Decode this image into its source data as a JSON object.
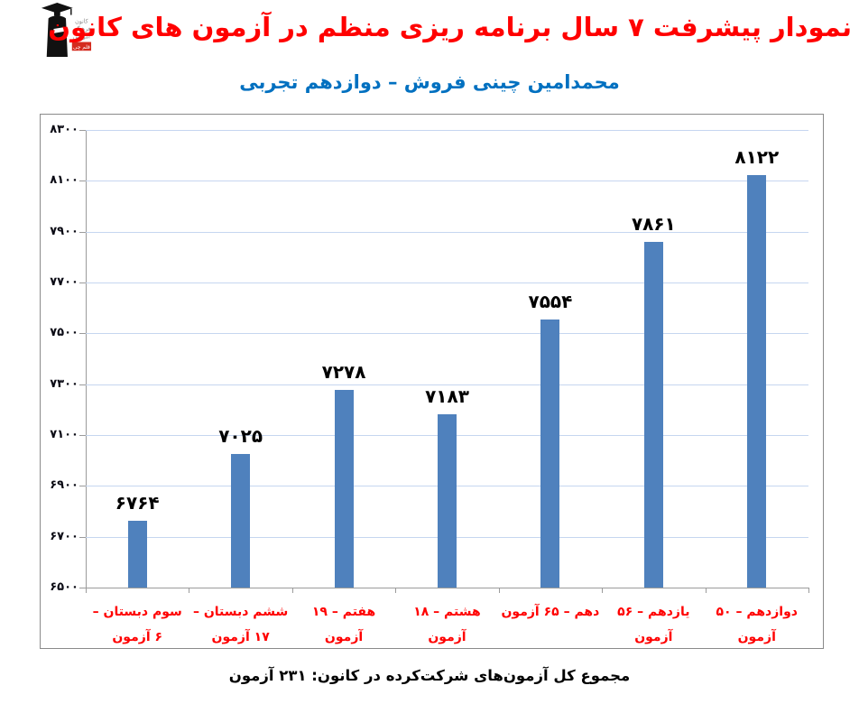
{
  "theme": {
    "title_red": "#FF0000",
    "subtitle_blue": "#0070C0",
    "category_red": "#FF0000",
    "bar_blue": "#4F81BD",
    "grid_blue": "#C6D6F0",
    "axis_gray": "#9B9B9B",
    "border_gray": "#8A8A8A",
    "logo_red": "#D42B1E",
    "logo_gray": "#8A8A8A"
  },
  "header": {
    "title": "نمودار پیشرفت ۷ سال برنامه ریزی منظم در آزمون های کانون",
    "subtitle": "محمدامین چینی فروش – دوازدهم تجربی",
    "logo": {
      "name": "kanoon-ghalamchi-logo",
      "lines": [
        "کانون",
        "فرهنگی",
        "آموزش"
      ],
      "badge": "قلم چی"
    }
  },
  "chart_data": {
    "type": "bar",
    "title": "نمودار پیشرفت ۷ سال برنامه ریزی منظم در آزمون های کانون",
    "subtitle": "محمدامین چینی فروش – دوازدهم تجربی",
    "categories": [
      "سوم دبستان – ۶ آزمون",
      "ششم دبستان – ۱۷ آزمون",
      "هفتم – ۱۹ آزمون",
      "هشتم – ۱۸ آزمون",
      "دهم – ۶۵ آزمون",
      "یازدهم – ۵۶ آزمون",
      "دوازدهم – ۵۰ آزمون"
    ],
    "categories_translit": [
      "3rd elementary - 6 exams",
      "6th elementary - 17 exams",
      "7th grade - 19 exams",
      "8th grade - 18 exams",
      "10th grade - 65 exams",
      "11th grade - 56 exams",
      "12th grade - 50 exams"
    ],
    "values": [
      6764,
      7025,
      7278,
      7183,
      7554,
      7861,
      8122
    ],
    "value_labels": [
      "۶۷۶۴",
      "۷۰۲۵",
      "۷۲۷۸",
      "۷۱۸۳",
      "۷۵۵۴",
      "۷۸۶۱",
      "۸۱۲۲"
    ],
    "y_ticks": [
      8300,
      8100,
      7900,
      7700,
      7500,
      7300,
      7100,
      6900,
      6700,
      6500
    ],
    "y_tick_labels": [
      "۸۳۰۰",
      "۸۱۰۰",
      "۷۹۰۰",
      "۷۷۰۰",
      "۷۵۰۰",
      "۷۳۰۰",
      "۷۱۰۰",
      "۶۹۰۰",
      "۶۷۰۰",
      "۶۵۰۰"
    ],
    "ylim": [
      6500,
      8300
    ],
    "xlabel": "",
    "ylabel": "",
    "grid": true,
    "legend": "none",
    "bar_color": "#4F81BD"
  },
  "footer": {
    "caption": "مجموع کل آزمون‌های شرکت‌کرده در کانون: ۲۳۱ آزمون"
  }
}
